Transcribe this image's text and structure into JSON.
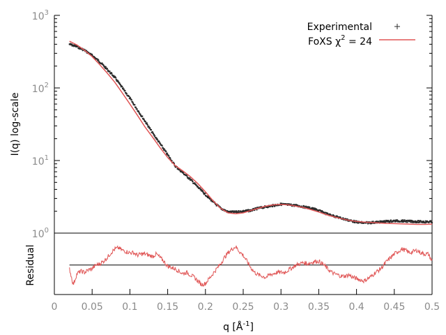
{
  "chart_data": [
    {
      "type": "scatter",
      "panel": "main",
      "ylabel": "I(q) log-scale",
      "yscale": "log",
      "ylim": [
        1,
        1000
      ],
      "xlim": [
        0,
        0.5
      ],
      "y_tick_labels": [
        {
          "base": "10",
          "exp": "0"
        },
        {
          "base": "10",
          "exp": "1"
        },
        {
          "base": "10",
          "exp": "2"
        },
        {
          "base": "10",
          "exp": "3"
        }
      ],
      "legend_position": "top-right",
      "legend": {
        "experimental": "Experimental",
        "fit_prefix": "FoXS χ",
        "fit_exp": "2",
        "fit_suffix": " = 24"
      },
      "series": [
        {
          "name": "Experimental",
          "style": "points",
          "color": "#2b2b2b",
          "x": [
            0.02,
            0.03,
            0.04,
            0.05,
            0.06,
            0.07,
            0.08,
            0.09,
            0.1,
            0.11,
            0.12,
            0.13,
            0.14,
            0.15,
            0.16,
            0.17,
            0.18,
            0.19,
            0.2,
            0.21,
            0.22,
            0.23,
            0.24,
            0.25,
            0.26,
            0.27,
            0.28,
            0.29,
            0.3,
            0.31,
            0.32,
            0.33,
            0.34,
            0.35,
            0.36,
            0.37,
            0.38,
            0.39,
            0.4,
            0.41,
            0.42,
            0.43,
            0.44,
            0.45,
            0.46,
            0.47,
            0.48,
            0.49,
            0.5
          ],
          "y": [
            400,
            370,
            330,
            280,
            230,
            180,
            140,
            100,
            72,
            50,
            35,
            24,
            17,
            12,
            8.4,
            6.8,
            5.5,
            4.3,
            3.4,
            2.7,
            2.2,
            1.95,
            1.95,
            2.0,
            2.05,
            2.2,
            2.3,
            2.4,
            2.5,
            2.45,
            2.4,
            2.3,
            2.2,
            2.05,
            1.85,
            1.72,
            1.6,
            1.5,
            1.42,
            1.38,
            1.4,
            1.42,
            1.45,
            1.47,
            1.47,
            1.45,
            1.44,
            1.43,
            1.43
          ]
        },
        {
          "name": "FoXS χ2 = 24",
          "style": "line",
          "color": "#e05555",
          "x": [
            0.02,
            0.03,
            0.04,
            0.05,
            0.06,
            0.07,
            0.08,
            0.09,
            0.1,
            0.11,
            0.12,
            0.13,
            0.14,
            0.15,
            0.16,
            0.17,
            0.18,
            0.19,
            0.2,
            0.21,
            0.22,
            0.23,
            0.24,
            0.25,
            0.26,
            0.27,
            0.28,
            0.29,
            0.3,
            0.31,
            0.32,
            0.33,
            0.34,
            0.35,
            0.36,
            0.37,
            0.38,
            0.39,
            0.4,
            0.41,
            0.42,
            0.43,
            0.44,
            0.45,
            0.46,
            0.47,
            0.48,
            0.49,
            0.5
          ],
          "y": [
            440,
            390,
            330,
            270,
            210,
            160,
            120,
            85,
            60,
            42,
            29,
            21,
            15,
            11,
            8.5,
            7.2,
            6.0,
            4.8,
            3.7,
            2.8,
            2.2,
            1.9,
            1.85,
            1.9,
            2.05,
            2.2,
            2.35,
            2.45,
            2.48,
            2.45,
            2.35,
            2.25,
            2.1,
            1.95,
            1.8,
            1.68,
            1.58,
            1.5,
            1.45,
            1.42,
            1.4,
            1.38,
            1.36,
            1.35,
            1.34,
            1.33,
            1.32,
            1.32,
            1.33
          ]
        }
      ]
    },
    {
      "type": "line",
      "panel": "residual",
      "ylabel": "Residual",
      "xlabel_text": "q [Å",
      "xlabel_exp": "-1",
      "xlabel_close": "]",
      "xlim": [
        0,
        0.5
      ],
      "x_ticks": [
        0,
        0.05,
        0.1,
        0.15,
        0.2,
        0.25,
        0.3,
        0.35,
        0.4,
        0.45,
        0.5
      ],
      "x_tick_labels": [
        "0",
        "0.05",
        "0.1",
        "0.15",
        "0.2",
        "0.25",
        "0.3",
        "0.35",
        "0.4",
        "0.45",
        "0.5"
      ],
      "ylim": [
        -2.4,
        2.6
      ],
      "reference_line": 0,
      "series": [
        {
          "name": "Residual",
          "color": "#e05555",
          "x": [
            0.02,
            0.025,
            0.03,
            0.035,
            0.04,
            0.045,
            0.05,
            0.055,
            0.06,
            0.065,
            0.07,
            0.075,
            0.08,
            0.085,
            0.09,
            0.095,
            0.1,
            0.105,
            0.11,
            0.115,
            0.12,
            0.125,
            0.13,
            0.135,
            0.14,
            0.145,
            0.15,
            0.155,
            0.16,
            0.165,
            0.17,
            0.175,
            0.18,
            0.185,
            0.19,
            0.195,
            0.2,
            0.205,
            0.21,
            0.215,
            0.22,
            0.225,
            0.23,
            0.235,
            0.24,
            0.245,
            0.25,
            0.255,
            0.26,
            0.265,
            0.27,
            0.275,
            0.28,
            0.285,
            0.29,
            0.295,
            0.3,
            0.305,
            0.31,
            0.315,
            0.32,
            0.325,
            0.33,
            0.335,
            0.34,
            0.345,
            0.35,
            0.355,
            0.36,
            0.365,
            0.37,
            0.375,
            0.38,
            0.385,
            0.39,
            0.395,
            0.4,
            0.405,
            0.41,
            0.415,
            0.42,
            0.425,
            0.43,
            0.435,
            0.44,
            0.445,
            0.45,
            0.455,
            0.46,
            0.465,
            0.47,
            0.475,
            0.48,
            0.485,
            0.49,
            0.495,
            0.5
          ],
          "y": [
            -0.3,
            -1.6,
            -0.7,
            -0.5,
            -0.6,
            -0.4,
            -0.3,
            0.0,
            0.1,
            0.3,
            0.6,
            1.0,
            1.3,
            1.4,
            1.2,
            1.1,
            1.0,
            1.0,
            0.8,
            0.9,
            0.9,
            0.8,
            0.7,
            0.9,
            0.6,
            0.3,
            -0.1,
            -0.2,
            -0.3,
            -0.5,
            -0.7,
            -0.6,
            -0.8,
            -1.0,
            -1.3,
            -1.6,
            -1.5,
            -1.1,
            -0.7,
            -0.3,
            0.1,
            0.6,
            1.0,
            1.3,
            1.5,
            1.1,
            0.8,
            0.3,
            -0.2,
            -0.6,
            -0.8,
            -0.9,
            -1.0,
            -0.8,
            -0.7,
            -0.6,
            -0.6,
            -0.6,
            -0.4,
            -0.2,
            0.0,
            0.1,
            0.2,
            0.1,
            0.2,
            0.3,
            0.3,
            0.1,
            -0.2,
            -0.5,
            -0.7,
            -0.8,
            -0.9,
            -0.9,
            -0.8,
            -1.0,
            -1.1,
            -1.2,
            -1.3,
            -1.1,
            -0.9,
            -0.6,
            -0.4,
            -0.1,
            0.3,
            0.6,
            0.9,
            1.1,
            1.3,
            1.2,
            1.0,
            1.1,
            1.2,
            1.0,
            0.9,
            0.9,
            0.3
          ]
        }
      ]
    }
  ]
}
